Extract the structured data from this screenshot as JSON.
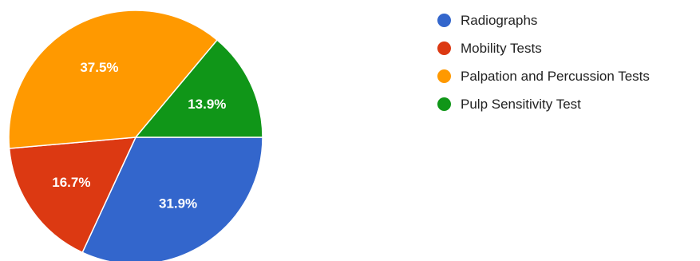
{
  "chart_data": {
    "type": "pie",
    "slices": [
      {
        "name": "Radiographs",
        "value": 31.9,
        "label": "31.9%",
        "color": "#3366cc"
      },
      {
        "name": "Mobility Tests",
        "value": 16.7,
        "label": "16.7%",
        "color": "#dc3912"
      },
      {
        "name": "Palpation and Percussion Tests",
        "value": 37.5,
        "label": "37.5%",
        "color": "#ff9900"
      },
      {
        "name": "Pulp Sensitivity Test",
        "value": 13.9,
        "label": "13.9%",
        "color": "#109618"
      }
    ],
    "legend_position": "right",
    "start": "3 o'clock",
    "direction": "clockwise"
  }
}
